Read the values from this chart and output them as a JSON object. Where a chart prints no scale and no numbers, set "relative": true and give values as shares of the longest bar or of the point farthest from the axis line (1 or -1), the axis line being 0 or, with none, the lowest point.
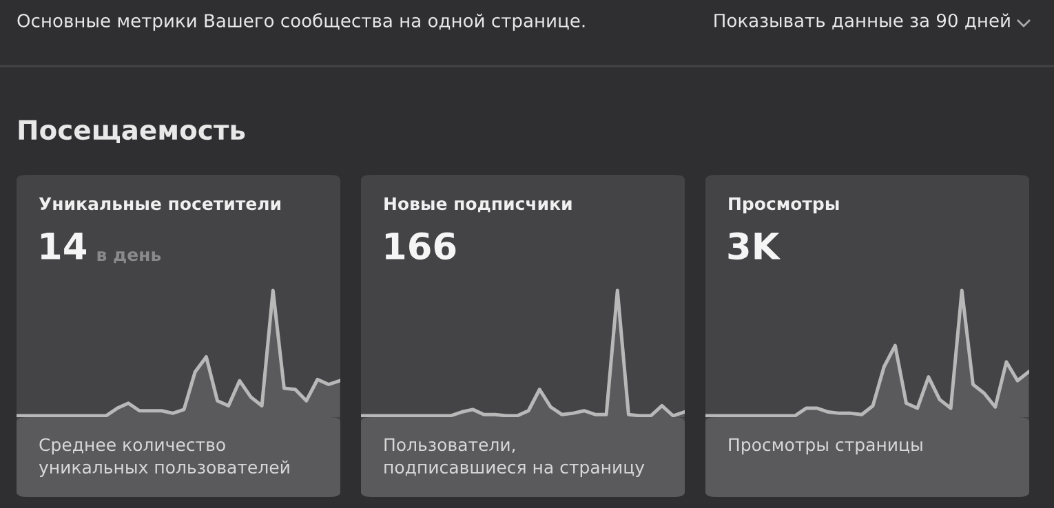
{
  "chart_data": [
    {
      "type": "area",
      "relative": true,
      "title": "Уникальные посетители",
      "subtitle": "14",
      "annotations": [
        "в день",
        "Среднее количество уникальных пользователей"
      ],
      "categories": [
        null,
        null,
        null,
        null,
        null,
        null,
        null,
        null,
        null,
        null,
        null,
        null,
        null,
        null,
        null,
        null,
        null,
        null,
        null,
        null,
        null,
        null,
        null,
        null,
        null,
        null,
        null,
        null,
        null,
        null
      ],
      "series": [
        {
          "color": "#b8b8b8",
          "values": [
            0,
            0,
            0,
            0,
            0,
            0,
            0,
            0,
            0,
            0.06,
            0.1,
            0.04,
            0.04,
            0.04,
            0.02,
            0.05,
            0.35,
            0.47,
            0.12,
            0.08,
            0.28,
            0.15,
            0.08,
            1,
            0.22,
            0.21,
            0.12,
            0.29,
            0.25,
            0.28
          ]
        }
      ]
    },
    {
      "type": "area",
      "relative": true,
      "title": "Новые подписчики",
      "subtitle": "166",
      "annotations": [
        "Пользователи, подписавшиеся на страницу"
      ],
      "categories": [
        null,
        null,
        null,
        null,
        null,
        null,
        null,
        null,
        null,
        null,
        null,
        null,
        null,
        null,
        null,
        null,
        null,
        null,
        null,
        null,
        null,
        null,
        null,
        null,
        null,
        null,
        null,
        null,
        null,
        null
      ],
      "series": [
        {
          "color": "#b8b8b8",
          "values": [
            0,
            0,
            0,
            0,
            0,
            0,
            0,
            0,
            0,
            0.03,
            0.05,
            0.01,
            0.01,
            0,
            0,
            0.04,
            0.21,
            0.07,
            0.01,
            0.02,
            0.04,
            0.01,
            0.01,
            1,
            0.01,
            0,
            0,
            0.08,
            0,
            0.03
          ]
        }
      ]
    },
    {
      "type": "area",
      "relative": true,
      "title": "Просмотры",
      "subtitle": "3K",
      "annotations": [
        "Просмотры страницы"
      ],
      "categories": [
        null,
        null,
        null,
        null,
        null,
        null,
        null,
        null,
        null,
        null,
        null,
        null,
        null,
        null,
        null,
        null,
        null,
        null,
        null,
        null,
        null,
        null,
        null,
        null,
        null,
        null,
        null,
        null,
        null,
        null
      ],
      "series": [
        {
          "color": "#b8b8b8",
          "values": [
            0,
            0,
            0,
            0,
            0,
            0,
            0,
            0,
            0,
            0.06,
            0.06,
            0.03,
            0.02,
            0.02,
            0.01,
            0.08,
            0.39,
            0.56,
            0.1,
            0.06,
            0.31,
            0.13,
            0.06,
            1,
            0.25,
            0.18,
            0.07,
            0.43,
            0.28,
            0.35
          ]
        }
      ]
    },
    {
      "type": "other",
      "annotations": [
        "Основные метрики Вашего сообщества на одной странице.",
        "Показывать данные за 90 дней",
        "Посещаемость"
      ]
    }
  ]
}
